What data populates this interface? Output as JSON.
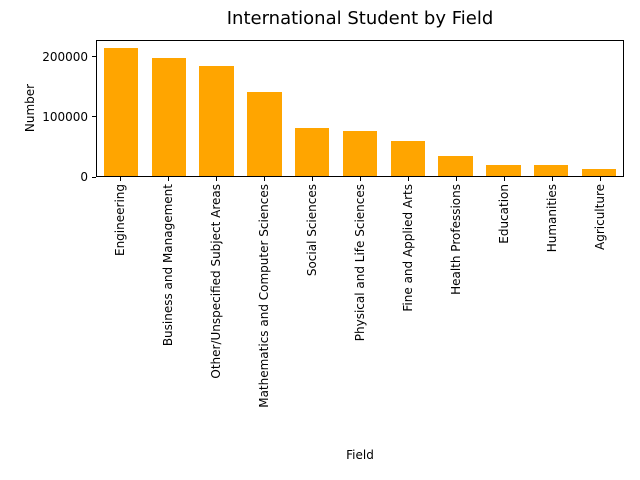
{
  "chart_data": {
    "type": "bar",
    "title": "International Student by Field",
    "xlabel": "Field",
    "ylabel": "Number",
    "categories": [
      "Engineering",
      "Business and Management",
      "Other/Unspecified Subject Areas",
      "Mathematics and Computer Sciences",
      "Social Sciences",
      "Physical and Life Sciences",
      "Fine and Applied Arts",
      "Health Professions",
      "Education",
      "Humanities",
      "Agriculture"
    ],
    "values": [
      217000,
      200000,
      186000,
      142000,
      81000,
      76000,
      59000,
      34000,
      19000,
      18000,
      12500
    ],
    "yticks": [
      0,
      100000,
      200000
    ],
    "ytick_labels": [
      "0",
      "100000",
      "200000"
    ],
    "ylim": [
      0,
      228000
    ],
    "xtick_rotation_degrees": 90,
    "bar_color": "#FFA500",
    "axis_color": "#000000",
    "grid": false,
    "legend": null
  }
}
